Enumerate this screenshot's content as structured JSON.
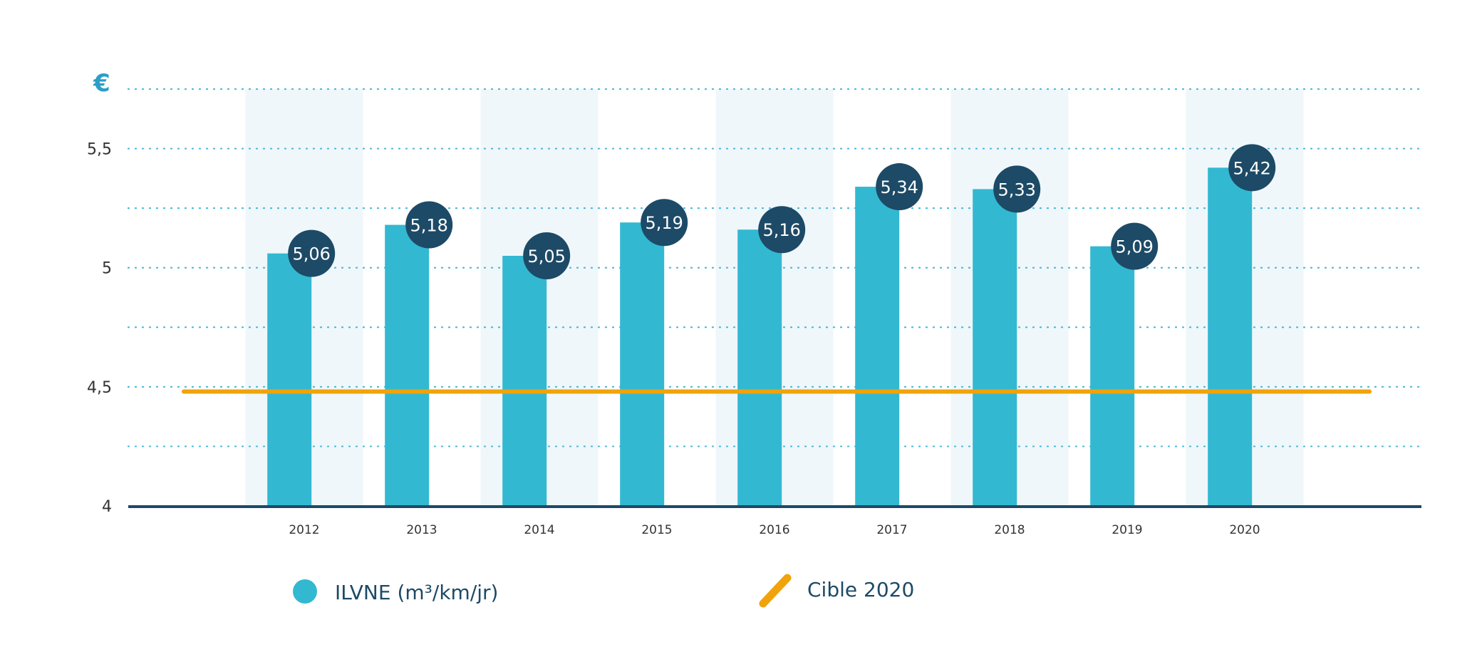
{
  "chart_data": {
    "type": "bar",
    "unit_label": "€",
    "categories": [
      "2012",
      "2013",
      "2014",
      "2015",
      "2016",
      "2017",
      "2018",
      "2019",
      "2020"
    ],
    "series": [
      {
        "name": "ILVNE (m³/km/jr)",
        "values": [
          5.06,
          5.18,
          5.05,
          5.19,
          5.16,
          5.34,
          5.33,
          5.09,
          5.42
        ],
        "labels": [
          "5,06",
          "5,18",
          "5,05",
          "5,19",
          "5,16",
          "5,34",
          "5,33",
          "5,09",
          "5,42"
        ]
      }
    ],
    "reference_line": {
      "name": "Cible 2020",
      "value": 4.48
    },
    "ylim": [
      4,
      5.75
    ],
    "y_ticks": [
      4,
      4.5,
      5,
      5.5
    ],
    "y_tick_labels": [
      "4",
      "4,5",
      "5",
      "5,5"
    ],
    "grid": true,
    "legend_position": "bottom"
  },
  "colors": {
    "bar": "#33b8d1",
    "label_bubble": "#1d4a66",
    "target_line": "#f0a30a",
    "band": "#eff7fa",
    "grid": "#4ab7d8",
    "axis": "#1d4a66"
  },
  "legend": {
    "bar_label": "ILVNE (m³/km/jr)",
    "line_label": "Cible 2020"
  }
}
